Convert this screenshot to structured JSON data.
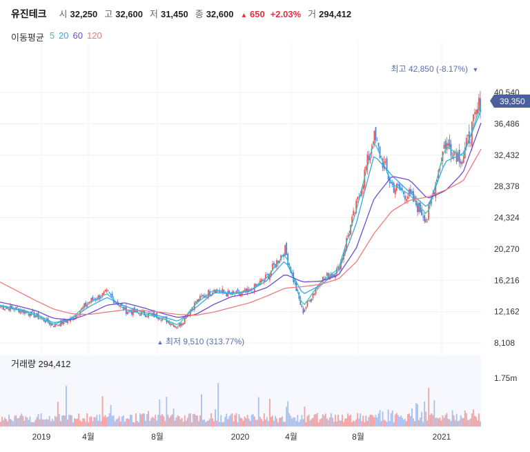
{
  "header": {
    "name": "유진테크",
    "open_label": "시",
    "open": "32,250",
    "high_label": "고",
    "high": "32,600",
    "low_label": "저",
    "low": "31,450",
    "close_label": "종",
    "close": "32,600",
    "change_icon": "triangle-up-icon",
    "change": "650",
    "change_pct": "+2.03%",
    "volume_label": "거",
    "volume": "294,412"
  },
  "moving_average": {
    "title": "이동평균",
    "periods": [
      {
        "label": "5",
        "color": "#2ec4c4"
      },
      {
        "label": "20",
        "color": "#35a7e8"
      },
      {
        "label": "60",
        "color": "#6a4bd6"
      },
      {
        "label": "120",
        "color": "#f0787a"
      }
    ]
  },
  "annotations": {
    "high": "최고 42,850 (-8.17%)",
    "low": "최저 9,510 (313.77%)",
    "current_price": "39,350"
  },
  "volume_panel": {
    "title": "거래량 294,412",
    "tick": "1.75m"
  },
  "colors": {
    "up": "#ef5350",
    "down": "#4a7ee0",
    "vol_up": "#f2a0a0",
    "vol_down": "#a6bfee",
    "price_tag": "#4a5f9e"
  },
  "chart_data": {
    "type": "line",
    "y_ticks": [
      "40,540",
      "36,486",
      "32,432",
      "28,378",
      "24,324",
      "20,270",
      "16,216",
      "12,162",
      "8,108"
    ],
    "x_ticks": [
      "2019",
      "4월",
      "8월",
      "2020",
      "4월",
      "8월",
      "2021"
    ],
    "ylim": [
      8108,
      44000
    ],
    "x": [
      "2018-11",
      "2018-12",
      "2019-01",
      "2019-02",
      "2019-03",
      "2019-04",
      "2019-05",
      "2019-06",
      "2019-07",
      "2019-08",
      "2019-09",
      "2019-10",
      "2019-11",
      "2019-12",
      "2020-01",
      "2020-02",
      "2020-03",
      "2020-04",
      "2020-05",
      "2020-06",
      "2020-07",
      "2020-08",
      "2020-09",
      "2020-10",
      "2020-11",
      "2020-12",
      "2021-01",
      "2021-02"
    ],
    "series": [
      {
        "name": "종가",
        "values": [
          12800,
          12500,
          11600,
          10400,
          11200,
          13500,
          14600,
          12300,
          11900,
          11500,
          10200,
          13400,
          15100,
          14300,
          14700,
          16700,
          20200,
          12100,
          16200,
          17600,
          25600,
          34800,
          28500,
          27200,
          24200,
          34000,
          32000,
          39350
        ]
      },
      {
        "name": "5",
        "values": [
          12900,
          12400,
          11700,
          10500,
          11300,
          13300,
          14500,
          12400,
          11900,
          11400,
          10400,
          13200,
          15000,
          14400,
          14800,
          16600,
          19800,
          12800,
          16000,
          17700,
          25300,
          34300,
          28700,
          27300,
          24600,
          33600,
          32200,
          39000
        ]
      },
      {
        "name": "20",
        "values": [
          13000,
          12500,
          11900,
          10700,
          11200,
          12800,
          14000,
          12900,
          12100,
          11600,
          10900,
          12700,
          14600,
          14600,
          14800,
          16200,
          18800,
          14400,
          15600,
          17400,
          23600,
          32400,
          29800,
          27600,
          25600,
          31600,
          32600,
          38200
        ]
      },
      {
        "name": "60",
        "values": [
          13400,
          12900,
          12300,
          11300,
          11100,
          11900,
          13000,
          13300,
          12700,
          12000,
          11400,
          11800,
          13100,
          14100,
          14500,
          15300,
          17000,
          16000,
          16100,
          16900,
          20400,
          26800,
          29700,
          29200,
          26800,
          27800,
          30200,
          36600
        ]
      },
      {
        "name": "120",
        "values": [
          16000,
          14800,
          13600,
          12500,
          11900,
          11800,
          12100,
          12400,
          12300,
          12100,
          11800,
          11700,
          12100,
          12700,
          13300,
          14200,
          15200,
          15400,
          15700,
          16400,
          18600,
          22300,
          25200,
          26600,
          27000,
          27900,
          29100,
          33200
        ]
      }
    ]
  }
}
